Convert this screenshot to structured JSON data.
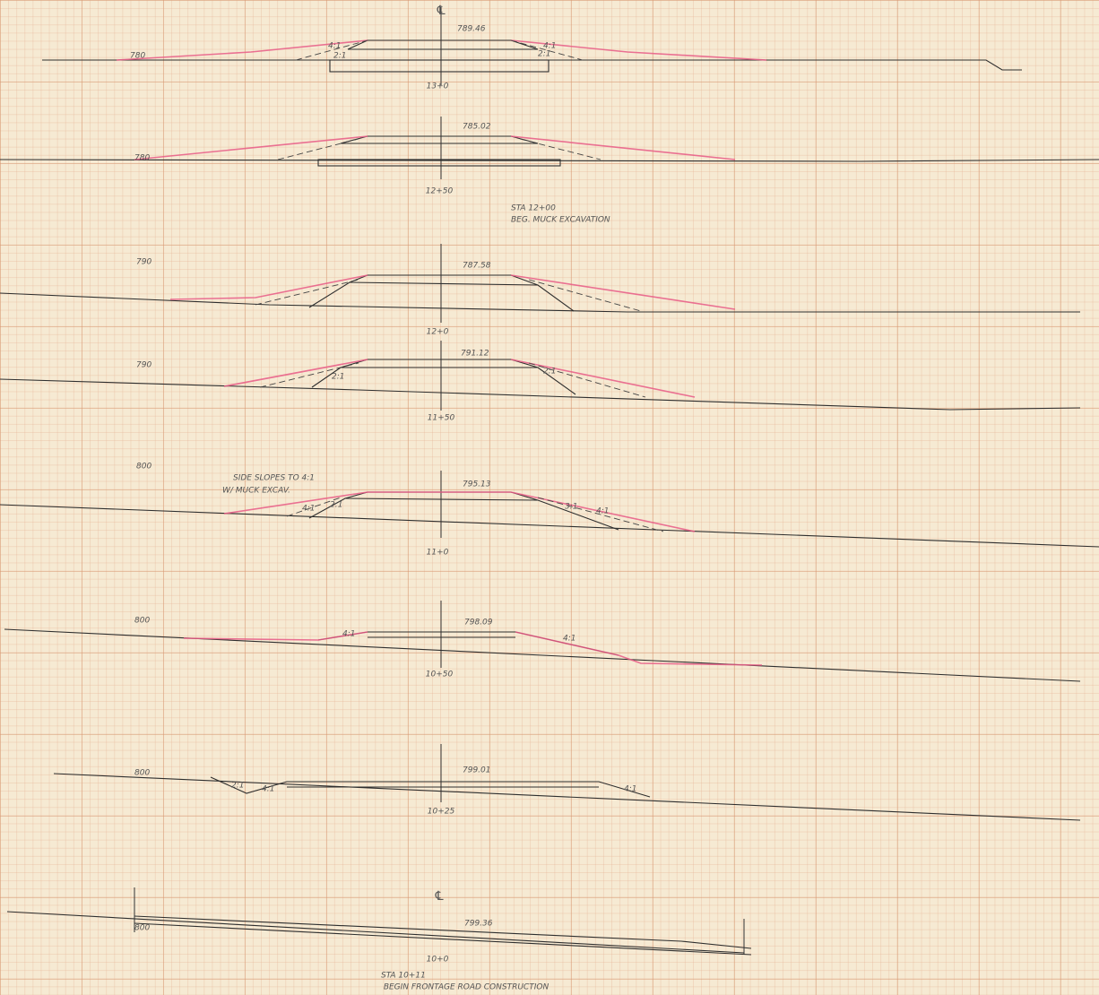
{
  "sheet": {
    "sections": [
      {
        "centerline": "℄",
        "elevation": "780",
        "grade": "789.46",
        "station": "13+0",
        "slopes": [
          "4:1",
          "2:1",
          "4:1",
          "2:1"
        ]
      },
      {
        "elevation": "780",
        "grade": "785.02",
        "station": "12+50",
        "note": [
          "STA 12+00",
          "BEG. MUCK EXCAVATION"
        ]
      },
      {
        "elevation": "790",
        "grade": "787.58",
        "station": "12+0"
      },
      {
        "elevation": "790",
        "grade": "791.12",
        "station": "11+50",
        "slopes": [
          "2:1",
          "2:1"
        ]
      },
      {
        "elevation": "800",
        "grade": "795.13",
        "station": "11+0",
        "note": [
          "SIDE SLOPES TO 4:1",
          "W/ MUCK EXCAV."
        ],
        "slopes": [
          "4:1",
          "2:1",
          "3:1",
          "4:1"
        ]
      },
      {
        "elevation": "800",
        "grade": "798.09",
        "station": "10+50",
        "slopes": [
          "4:1",
          "4:1"
        ]
      },
      {
        "elevation": "800",
        "grade": "799.01",
        "station": "10+25",
        "slopes": [
          "2:1",
          "4:1",
          "4:1"
        ]
      },
      {
        "centerline": "℄",
        "elevation": "800",
        "grade": "799.36",
        "station": "10+0",
        "note": [
          "STA 10+11",
          "BEGIN FRONTAGE ROAD CONSTRUCTION"
        ]
      }
    ]
  }
}
